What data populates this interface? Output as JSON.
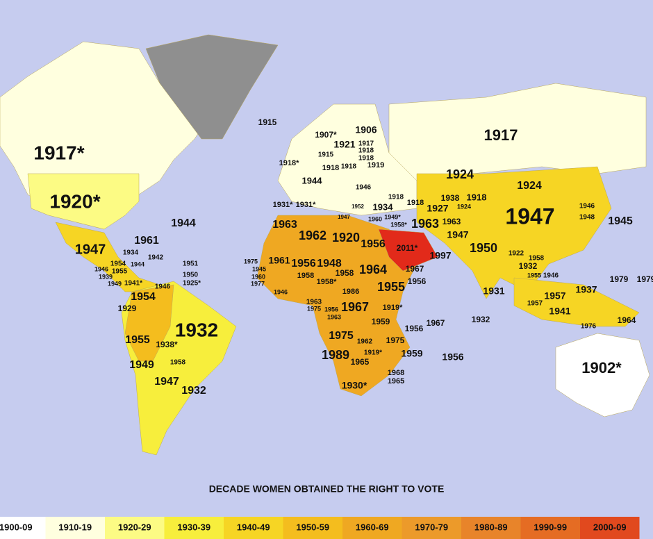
{
  "title": "DECADE WOMEN OBTAINED THE RIGHT TO VOTE",
  "legend": [
    {
      "label": "1900-09",
      "color": "#ffffff"
    },
    {
      "label": "1910-19",
      "color": "#ffffdf"
    },
    {
      "label": "1920-29",
      "color": "#fcfb84"
    },
    {
      "label": "1930-39",
      "color": "#f7ee3c"
    },
    {
      "label": "1940-49",
      "color": "#f6d524"
    },
    {
      "label": "1950-59",
      "color": "#f4bd1e"
    },
    {
      "label": "1960-69",
      "color": "#efa822"
    },
    {
      "label": "1970-79",
      "color": "#ec9a2a"
    },
    {
      "label": "1980-89",
      "color": "#e8842a"
    },
    {
      "label": "1990-99",
      "color": "#e56c23"
    },
    {
      "label": "2000-09",
      "color": "#e1491e"
    }
  ],
  "labels": [
    "1915",
    "1917*",
    "1920*",
    "1944",
    "1961",
    "1947",
    "1934",
    "1954",
    "1955",
    "1939",
    "1949",
    "1941*",
    "1946",
    "1944",
    "1942",
    "1951",
    "1950",
    "1925*",
    "1946",
    "1954",
    "1929",
    "1932",
    "1955",
    "1938*",
    "1949",
    "1958",
    "1947",
    "1932",
    "1907*",
    "1906",
    "1921",
    "1915",
    "1917",
    "1918",
    "1918",
    "1918*",
    "1918",
    "1918",
    "1919",
    "1944",
    "1946",
    "1931*",
    "1931*",
    "1934",
    "1918",
    "1918",
    "1938",
    "1918",
    "1927",
    "1924",
    "1963",
    "1962",
    "1920",
    "1956",
    "1963",
    "1963",
    "1947",
    "1924",
    "1924",
    "1917",
    "1947",
    "1946",
    "1948",
    "1945",
    "1950",
    "2011*",
    "1997",
    "1967",
    "1956",
    "1964",
    "1955",
    "1958",
    "1958*",
    "1956",
    "1948",
    "1961",
    "1975",
    "1945",
    "1960",
    "1977",
    "1946",
    "1958",
    "1986",
    "1963",
    "1975",
    "1956",
    "1967",
    "1963",
    "1919*",
    "1959",
    "1956",
    "1967",
    "1975",
    "1962",
    "1975",
    "1989",
    "1965",
    "1919*",
    "1959",
    "1956",
    "1968",
    "1965",
    "1930*",
    "1931",
    "1932",
    "1922",
    "1932",
    "1958",
    "1955",
    "1946",
    "1957",
    "1957",
    "1941",
    "1937",
    "1979",
    "1979",
    "1976",
    "1964",
    "1902*",
    "1949*",
    "1958*",
    "1960",
    "1952",
    "1947"
  ]
}
